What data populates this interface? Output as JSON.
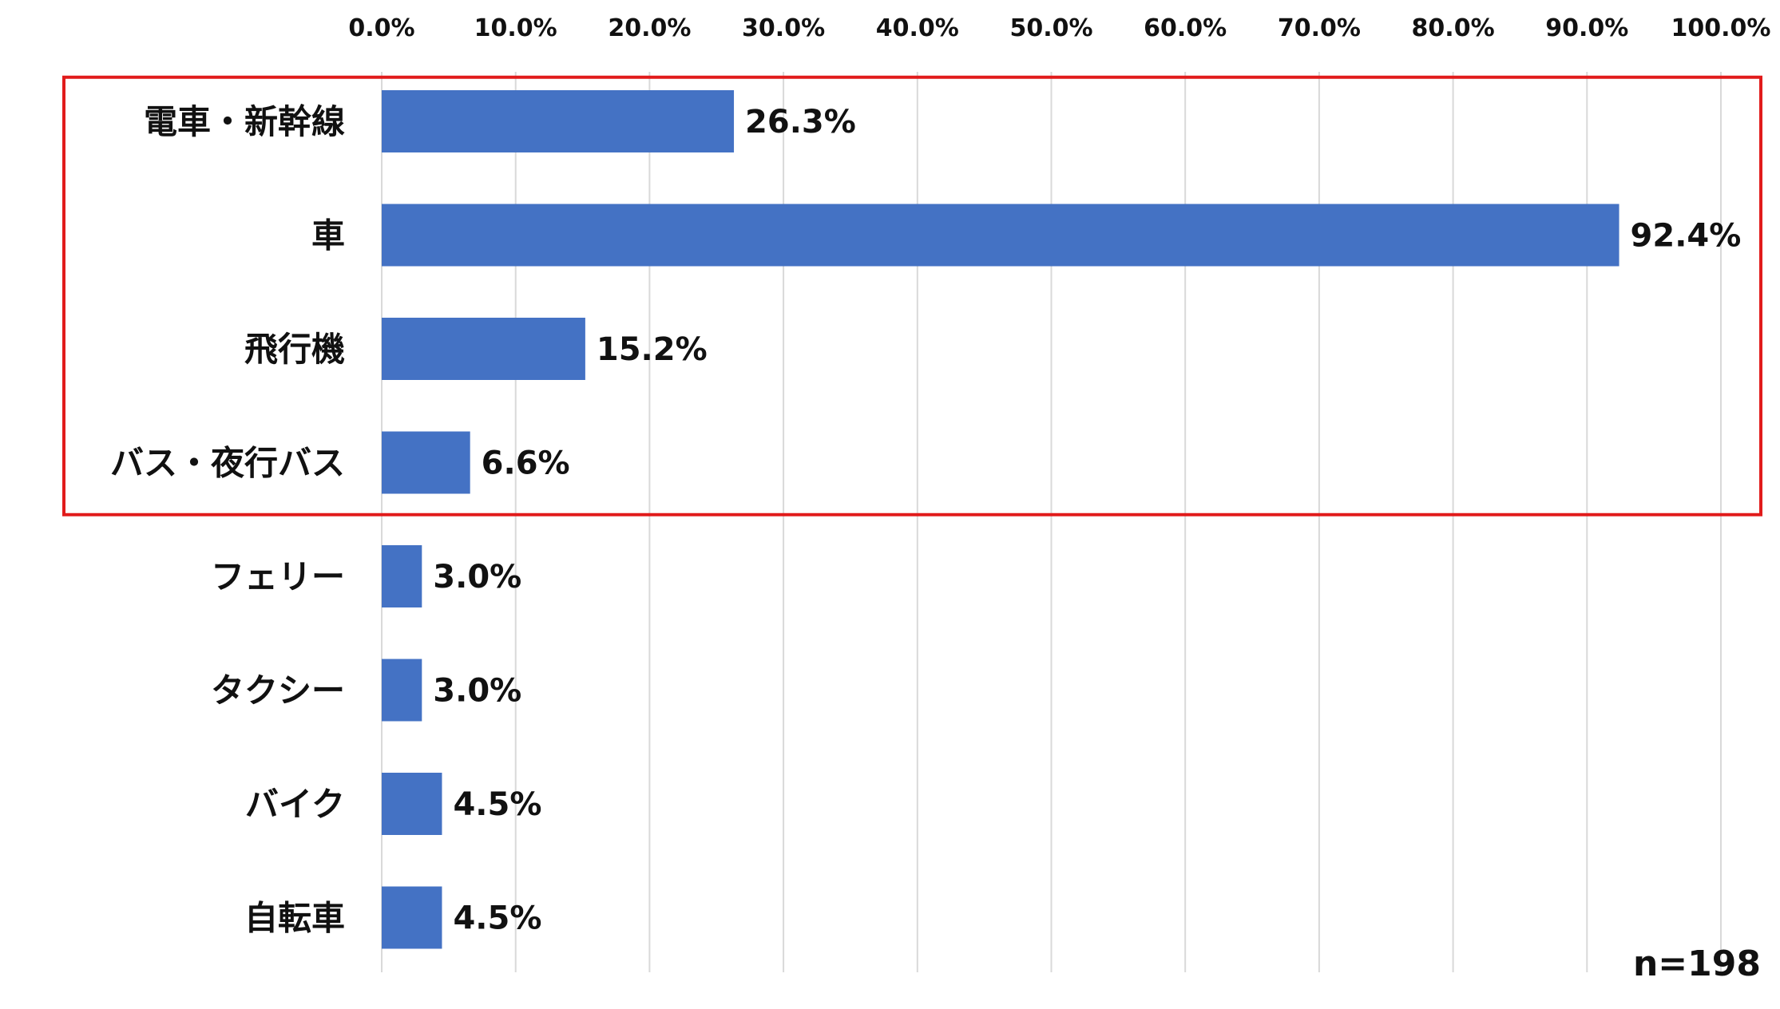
{
  "chart_data": {
    "type": "bar",
    "orientation": "horizontal",
    "categories": [
      "電車・新幹線",
      "車",
      "飛行機",
      "バス・夜行バス",
      "フェリー",
      "タクシー",
      "バイク",
      "自転車"
    ],
    "values": [
      26.3,
      92.4,
      15.2,
      6.6,
      3.0,
      3.0,
      4.5,
      4.5
    ],
    "data_labels": [
      "26.3%",
      "92.4%",
      "15.2%",
      "6.6%",
      "3.0%",
      "3.0%",
      "4.5%",
      "4.5%"
    ],
    "xlim": [
      0,
      100
    ],
    "x_ticks": [
      "0.0%",
      "10.0%",
      "20.0%",
      "30.0%",
      "40.0%",
      "50.0%",
      "60.0%",
      "70.0%",
      "80.0%",
      "90.0%",
      "100.0%"
    ],
    "x_axis_position": "top",
    "grid": true,
    "highlighted_categories": [
      "電車・新幹線",
      "車",
      "飛行機",
      "バス・夜行バス"
    ],
    "annotation": "n=198",
    "colors": {
      "bar": "#4472C4",
      "highlight_box": "#E11B1B",
      "grid": "#D9D9D9",
      "text": "#111111"
    }
  }
}
